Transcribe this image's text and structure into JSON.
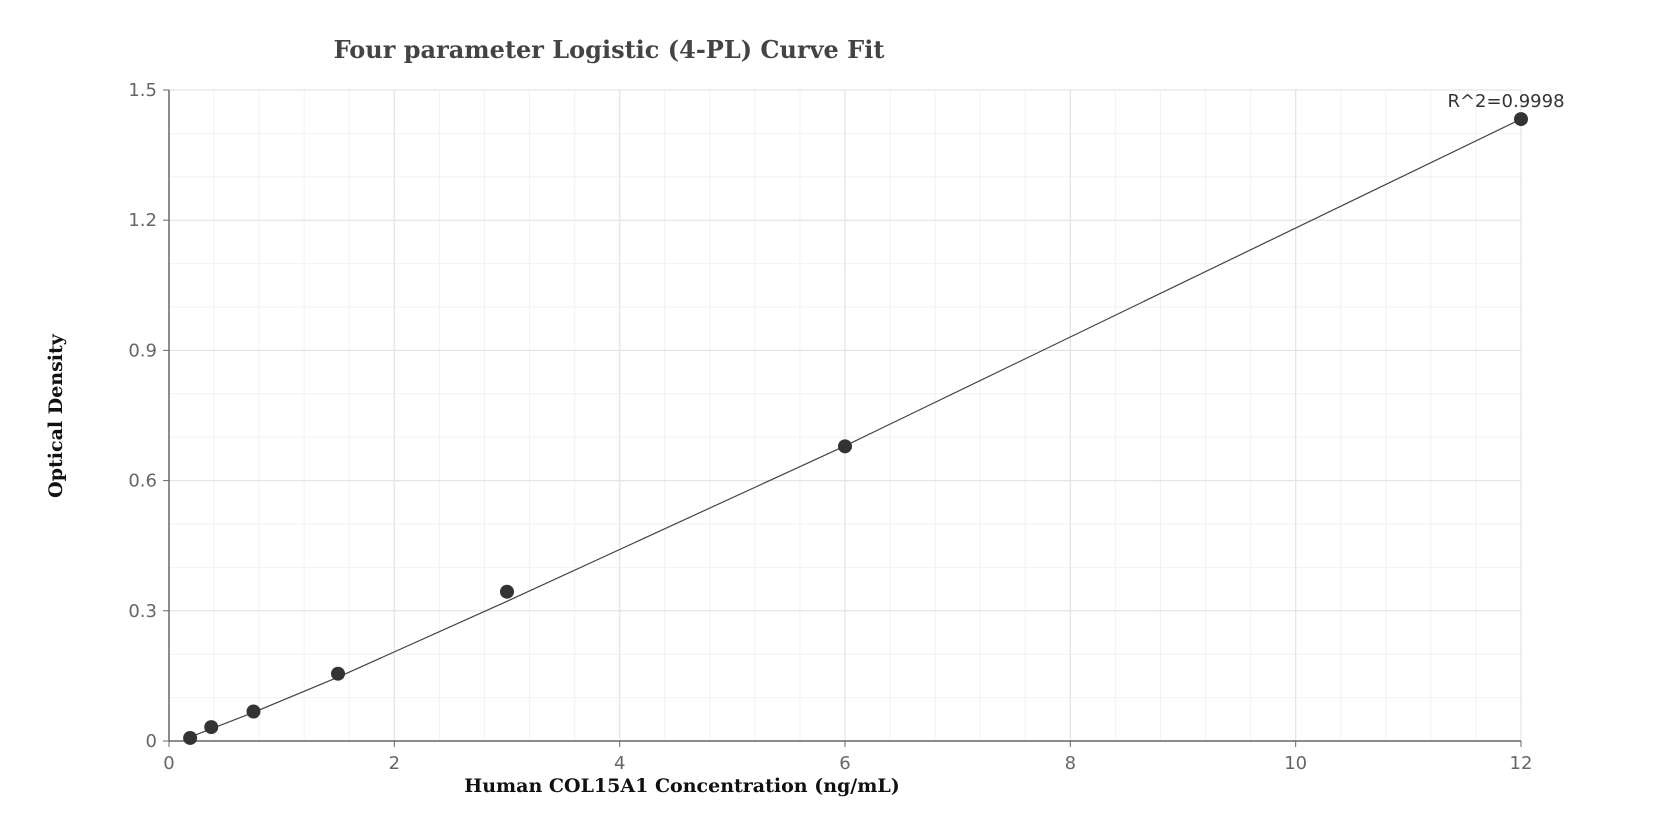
{
  "chart_data": {
    "type": "scatter",
    "title": "Four parameter Logistic (4-PL) Curve Fit",
    "xlabel": "Human COL15A1 Concentration (ng/mL)",
    "ylabel": "Optical Density",
    "xlim": [
      0,
      12
    ],
    "ylim": [
      0,
      1.5
    ],
    "x_ticks": [
      0,
      2,
      4,
      6,
      8,
      10,
      12
    ],
    "y_ticks": [
      0,
      0.3,
      0.6,
      0.9,
      1.2,
      1.5
    ],
    "x_tick_labels": [
      "0",
      "2",
      "4",
      "6",
      "8",
      "10",
      "12"
    ],
    "y_tick_labels": [
      "0",
      "0.3",
      "0.6",
      "0.9",
      "1.2",
      "1.5"
    ],
    "x_minor_step": 0.4,
    "y_minor_step": 0.1,
    "grid": true,
    "points": {
      "x": [
        0.1875,
        0.375,
        0.75,
        1.5,
        3,
        6,
        12
      ],
      "y": [
        0.007,
        0.032,
        0.068,
        0.155,
        0.344,
        0.679,
        1.433
      ]
    },
    "fit_curve": {
      "x": [
        0.1875,
        0.375,
        0.75,
        1.5,
        3,
        6,
        12
      ],
      "y": [
        0.009,
        0.028,
        0.066,
        0.147,
        0.322,
        0.68,
        1.433
      ]
    },
    "annotation": "R^2=0.9998",
    "colors": {
      "marker": "#333333",
      "fit_line": "#444444",
      "grid_major": "#e3e3e8",
      "grid_minor": "#f2f2f5",
      "axis": "#666666"
    }
  }
}
